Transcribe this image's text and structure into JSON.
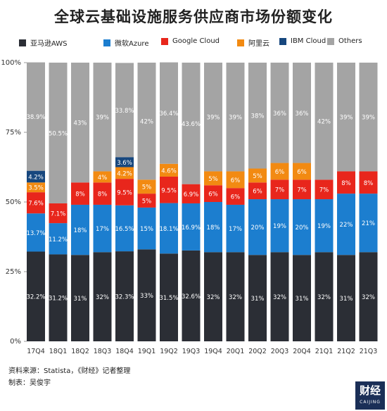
{
  "chart_data": {
    "type": "bar",
    "stacked": true,
    "title": "全球云基础设施服务供应商市场份额变化",
    "categories": [
      "17Q4",
      "18Q1",
      "18Q2",
      "18Q3",
      "18Q4",
      "19Q1",
      "19Q2",
      "19Q3",
      "19Q4",
      "20Q1",
      "20Q2",
      "20Q3",
      "20Q4",
      "21Q1",
      "21Q2",
      "21Q3"
    ],
    "ylim": [
      0,
      100
    ],
    "yticks": [
      "0%",
      "25%",
      "50%",
      "75%",
      "100%"
    ],
    "grid": false,
    "legend_position": "top",
    "series": [
      {
        "name": "亚马逊AWS",
        "color": "#2b2e35",
        "values": [
          32.2,
          31.2,
          31,
          32,
          32.3,
          33,
          31.5,
          32.6,
          32,
          32,
          31,
          32,
          31,
          32,
          31,
          32
        ],
        "labels": [
          "32.2%",
          "31.2%",
          "31%",
          "32%",
          "32.3%",
          "33%",
          "31.5%",
          "32.6%",
          "32%",
          "32%",
          "31%",
          "32%",
          "31%",
          "32%",
          "31%",
          "32%"
        ]
      },
      {
        "name": "微软Azure",
        "color": "#1c7ecf",
        "values": [
          13.7,
          11.2,
          18,
          17,
          16.5,
          15,
          18.1,
          16.9,
          18,
          17,
          20,
          19,
          20,
          19,
          22,
          21
        ],
        "labels": [
          "13.7%",
          "11.2%",
          "18%",
          "17%",
          "16.5%",
          "15%",
          "18.1%",
          "16.9%",
          "18%",
          "17%",
          "20%",
          "19%",
          "20%",
          "19%",
          "22%",
          "21%"
        ]
      },
      {
        "name": "Google Cloud",
        "color": "#e8261c",
        "values": [
          7.6,
          7.1,
          8,
          8,
          9.5,
          5,
          9.5,
          6.9,
          6,
          6,
          6,
          7,
          7,
          7,
          8,
          8
        ],
        "labels": [
          "7.6%",
          "7.1%",
          "8%",
          "8%",
          "9.5%",
          "5%",
          "9.5%",
          "6.9%",
          "6%",
          "6%",
          "6%",
          "7%",
          "7%",
          "7%",
          "8%",
          "8%"
        ]
      },
      {
        "name": "阿里云",
        "color": "#f28a12",
        "values": [
          3.5,
          0,
          0,
          4,
          4.2,
          5,
          4.6,
          0,
          5,
          6,
          5,
          6,
          6,
          0,
          0,
          0
        ],
        "labels": [
          "3.5%",
          "",
          "",
          "4%",
          "4.2%",
          "5%",
          "4.6%",
          "",
          "5%",
          "6%",
          "5%",
          "6%",
          "6%",
          "",
          "",
          ""
        ]
      },
      {
        "name": "IBM Cloud",
        "color": "#17477e",
        "values": [
          4.2,
          0,
          0,
          0,
          3.6,
          0,
          0,
          0,
          0,
          0,
          0,
          0,
          0,
          0,
          0,
          0
        ],
        "labels": [
          "4.2%",
          "",
          "",
          "",
          "3.6%",
          "",
          "",
          "",
          "",
          "",
          "",
          "",
          "",
          "",
          "",
          ""
        ]
      },
      {
        "name": "Others",
        "color": "#a4a4a4",
        "values": [
          38.9,
          50.5,
          43,
          39,
          33.8,
          42,
          36.4,
          43.6,
          39,
          39,
          38,
          36,
          36,
          42,
          39,
          39
        ],
        "labels": [
          "38.9%",
          "50.5%",
          "43%",
          "39%",
          "33.8%",
          "42%",
          "36.4%",
          "43.6%",
          "39%",
          "39%",
          "38%",
          "36%",
          "36%",
          "42%",
          "39%",
          "39%"
        ]
      }
    ]
  },
  "footer": {
    "source": "资料来源：Statista，《财经》记者整理",
    "maker": "制表：吴俊宇"
  },
  "logo": {
    "text": "财经",
    "sub": "CAIJING"
  }
}
